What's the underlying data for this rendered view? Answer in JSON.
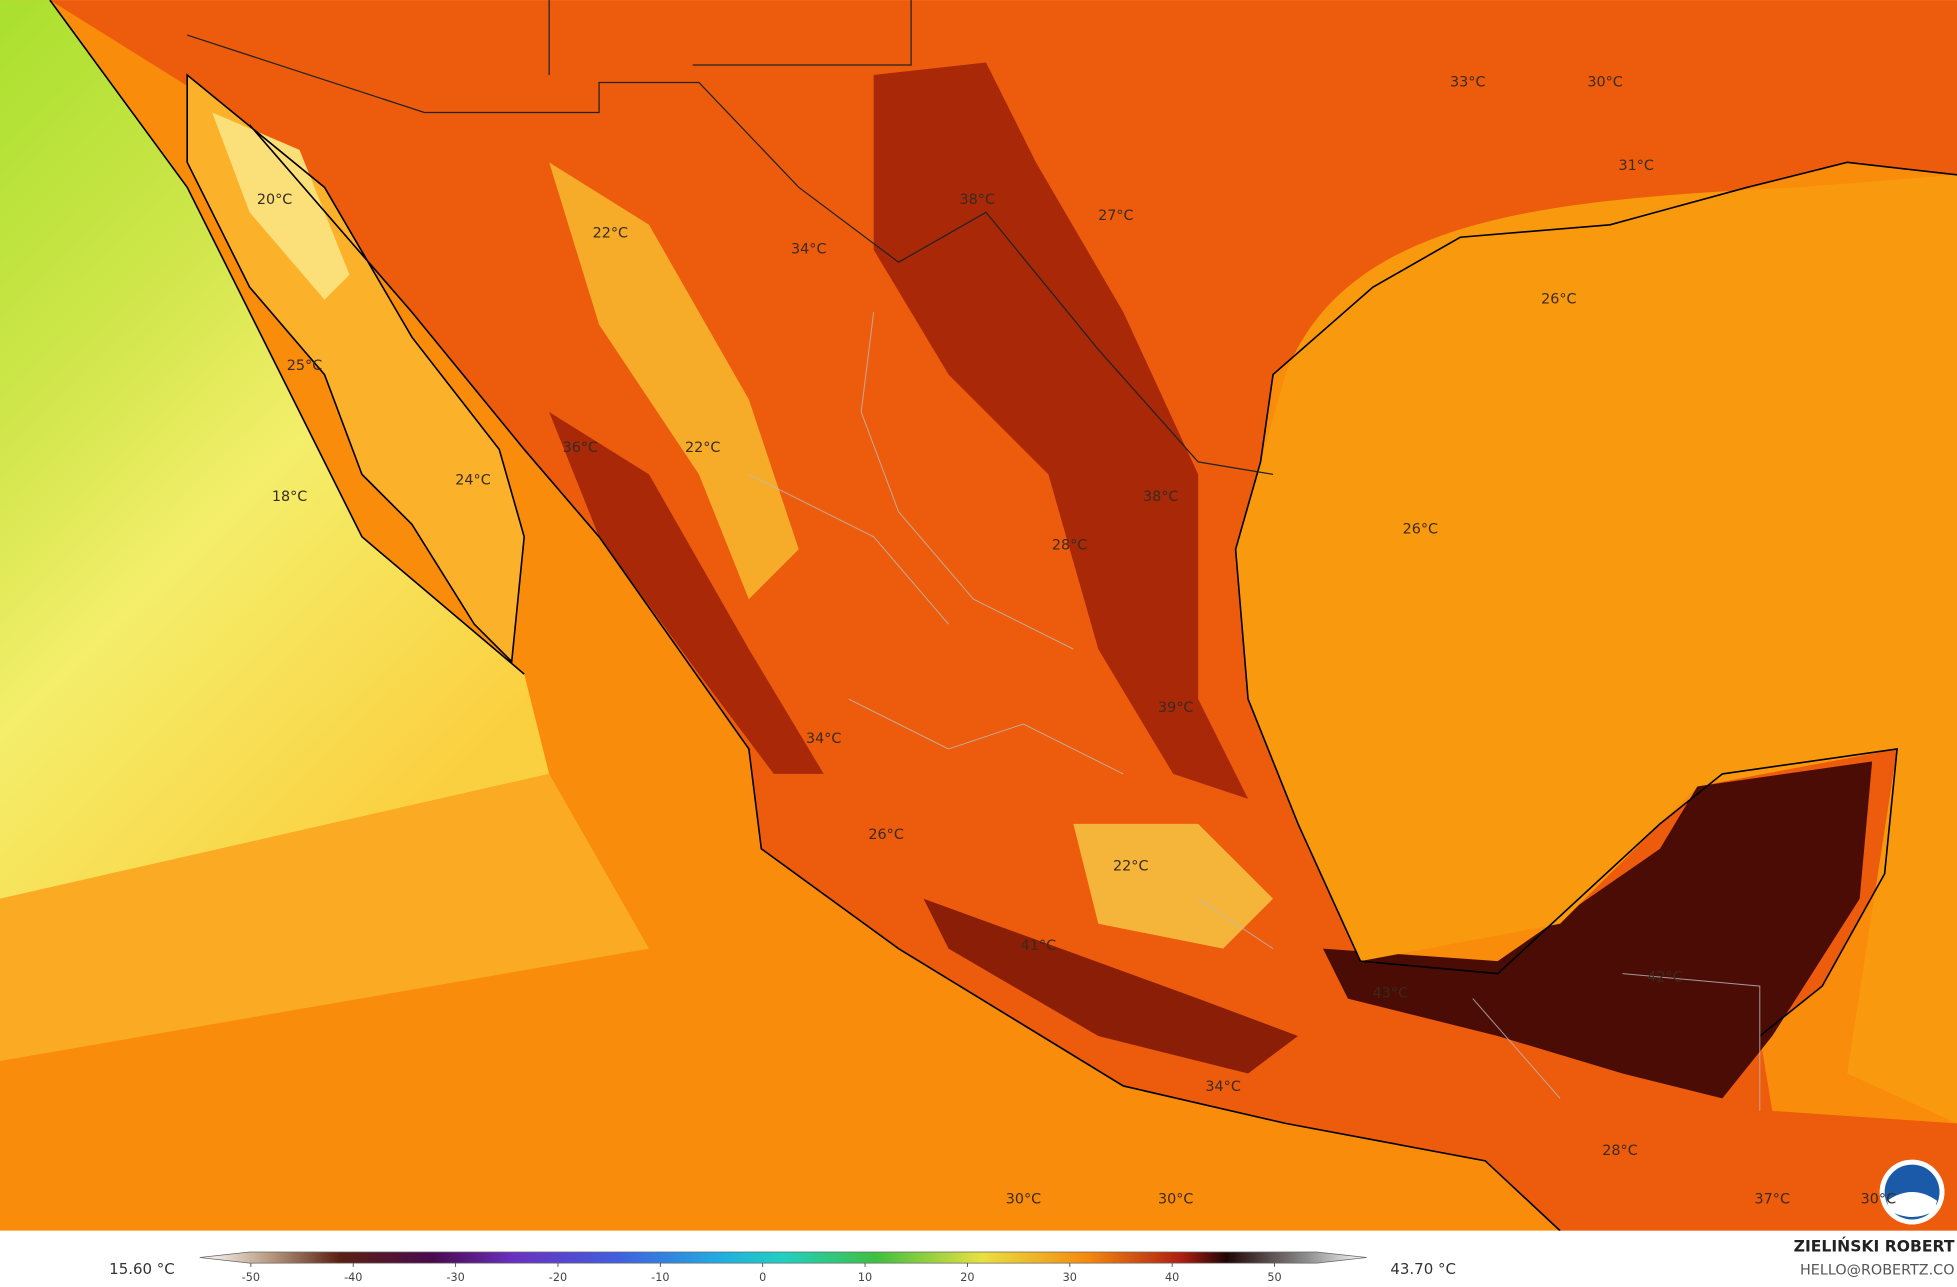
{
  "map": {
    "labels": [
      "33°C",
      "30°C",
      "31°C",
      "38°C",
      "27°C",
      "20°C",
      "22°C",
      "34°C",
      "26°C",
      "25°C",
      "36°C",
      "22°C",
      "24°C",
      "18°C",
      "38°C",
      "26°C",
      "28°C",
      "39°C",
      "34°C",
      "26°C",
      "22°C",
      "41°C",
      "43°C",
      "42°C",
      "34°C",
      "28°C",
      "30°C",
      "30°C",
      "37°C",
      "30°C"
    ]
  },
  "legend": {
    "min_label": "15.60 °C",
    "max_label": "43.70 °C",
    "range": [
      -55,
      59
    ],
    "ticks": [
      -50,
      -40,
      -30,
      -20,
      -10,
      0,
      10,
      20,
      30,
      40,
      50
    ]
  },
  "credit": {
    "author": "ZIELIŃSKI ROBERT",
    "email": "HELLO@ROBERTZ.CO"
  }
}
